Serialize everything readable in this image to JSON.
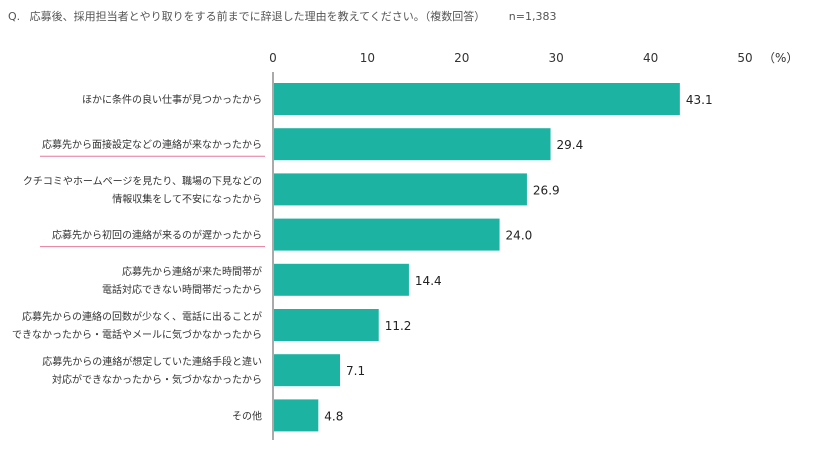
{
  "header": {
    "q_prefix": "Q.",
    "question": "応募後、採用担当者とやり取りをする前までに辞退した理由を教えてください。（複数回答）",
    "sample": "n=1,383"
  },
  "chart_data": {
    "type": "bar",
    "orientation": "horizontal",
    "unit_label": "（%）",
    "xlim": [
      0,
      50
    ],
    "ticks": [
      0,
      10,
      20,
      30,
      40,
      50
    ],
    "bar_color": "#1db3a2",
    "underline_color": "#e6799a",
    "categories": [
      {
        "lines": [
          "ほかに条件の良い仕事が見つかったから"
        ],
        "value": 43.1,
        "value_label": "43.1",
        "underline": false
      },
      {
        "lines": [
          "応募先から面接設定などの連絡が来なかったから"
        ],
        "value": 29.4,
        "value_label": "29.4",
        "underline": true
      },
      {
        "lines": [
          "クチコミやホームページを見たり、職場の下見などの",
          "情報収集をして不安になったから"
        ],
        "value": 26.9,
        "value_label": "26.9",
        "underline": false
      },
      {
        "lines": [
          "応募先から初回の連絡が来るのが遅かったから"
        ],
        "value": 24.0,
        "value_label": "24.0",
        "underline": true
      },
      {
        "lines": [
          "応募先から連絡が来た時間帯が",
          "電話対応できない時間帯だったから"
        ],
        "value": 14.4,
        "value_label": "14.4",
        "underline": false
      },
      {
        "lines": [
          "応募先からの連絡の回数が少なく、電話に出ることが",
          "できなかったから・電話やメールに気づかなかったから"
        ],
        "value": 11.2,
        "value_label": "11.2",
        "underline": false
      },
      {
        "lines": [
          "応募先からの連絡が想定していた連絡手段と違い",
          "対応ができなかったから・気づかなかったから"
        ],
        "value": 7.1,
        "value_label": "7.1",
        "underline": false
      },
      {
        "lines": [
          "その他"
        ],
        "value": 4.8,
        "value_label": "4.8",
        "underline": false
      }
    ]
  }
}
